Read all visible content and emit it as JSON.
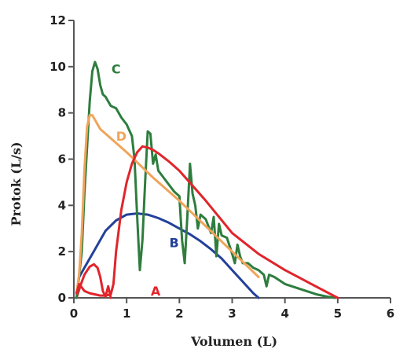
{
  "chart_data": {
    "type": "line",
    "title": "",
    "xlabel": "Volumen (L)",
    "ylabel": "Protok (L/s)",
    "xlim": [
      0,
      6
    ],
    "ylim": [
      0,
      12
    ],
    "x_ticks": [
      0,
      1,
      2,
      3,
      4,
      5,
      6
    ],
    "y_ticks": [
      0,
      2,
      4,
      6,
      8,
      10,
      12
    ],
    "grid": false,
    "legend": "none",
    "series": [
      {
        "name": "A",
        "color": "#e0252b",
        "label_at": [
          1.55,
          0.1
        ],
        "x": [
          0.05,
          0.12,
          0.2,
          0.3,
          0.38,
          0.45,
          0.5,
          0.55,
          0.6,
          0.65,
          0.7
        ],
        "y": [
          0.0,
          0.5,
          1.0,
          1.35,
          1.45,
          1.3,
          0.9,
          0.3,
          0.05,
          0.5,
          0.0
        ]
      },
      {
        "name": "B",
        "color": "#23409a",
        "label_at": [
          1.9,
          2.2
        ],
        "x": [
          0.05,
          0.1,
          0.2,
          0.4,
          0.6,
          0.8,
          1.0,
          1.2,
          1.4,
          1.6,
          1.8,
          2.0,
          2.2,
          2.4,
          2.6,
          2.8,
          3.0,
          3.2,
          3.4,
          3.5
        ],
        "y": [
          0.2,
          0.9,
          1.3,
          2.1,
          2.9,
          3.35,
          3.6,
          3.65,
          3.6,
          3.45,
          3.25,
          3.0,
          2.75,
          2.45,
          2.1,
          1.7,
          1.2,
          0.7,
          0.2,
          0.0
        ]
      },
      {
        "name": "C",
        "color": "#2e7d3e",
        "label_at": [
          0.8,
          9.7
        ],
        "x": [
          0.05,
          0.15,
          0.2,
          0.25,
          0.3,
          0.35,
          0.4,
          0.45,
          0.5,
          0.55,
          0.6,
          0.7,
          0.8,
          0.9,
          1.0,
          1.1,
          1.15,
          1.2,
          1.25,
          1.3,
          1.35,
          1.4,
          1.45,
          1.5,
          1.55,
          1.6,
          1.7,
          1.8,
          1.9,
          2.0,
          2.05,
          2.1,
          2.15,
          2.2,
          2.25,
          2.3,
          2.35,
          2.4,
          2.5,
          2.6,
          2.65,
          2.7,
          2.75,
          2.8,
          2.9,
          3.0,
          3.05,
          3.1,
          3.15,
          3.2,
          3.3,
          3.4,
          3.5,
          3.6,
          3.65,
          3.7,
          3.8,
          4.0,
          4.2,
          4.4,
          4.6,
          4.8,
          4.95
        ],
        "y": [
          0.0,
          2.0,
          4.5,
          6.5,
          8.5,
          9.8,
          10.2,
          9.9,
          9.2,
          8.8,
          8.7,
          8.3,
          8.2,
          7.8,
          7.5,
          7.0,
          6.0,
          3.5,
          1.2,
          2.5,
          5.0,
          7.2,
          7.1,
          5.8,
          6.2,
          5.5,
          5.2,
          4.9,
          4.6,
          4.4,
          2.5,
          1.5,
          3.5,
          5.8,
          4.5,
          4.0,
          3.0,
          3.6,
          3.4,
          2.8,
          3.5,
          1.8,
          3.2,
          2.7,
          2.6,
          1.9,
          1.5,
          2.3,
          1.8,
          1.5,
          1.5,
          1.3,
          1.2,
          1.0,
          0.5,
          1.0,
          0.9,
          0.6,
          0.45,
          0.3,
          0.15,
          0.05,
          0.0
        ]
      },
      {
        "name": "D",
        "color": "#f0a45a",
        "label_at": [
          0.9,
          6.8
        ],
        "x": [
          0.05,
          0.1,
          0.15,
          0.2,
          0.25,
          0.3,
          0.35,
          0.4,
          0.5,
          0.7,
          1.0,
          1.5,
          2.0,
          2.5,
          3.0,
          3.5
        ],
        "y": [
          0.2,
          1.0,
          2.8,
          5.5,
          7.4,
          7.9,
          7.9,
          7.7,
          7.3,
          6.9,
          6.3,
          5.2,
          4.2,
          3.1,
          2.0,
          0.9
        ]
      },
      {
        "name": "",
        "color": "#e0252b",
        "x": [
          0.05,
          0.1,
          0.2,
          0.3,
          0.4,
          0.5,
          0.6,
          0.7,
          0.75,
          0.8,
          0.9,
          1.0,
          1.1,
          1.2,
          1.3,
          1.4,
          1.5,
          1.6,
          1.8,
          2.0,
          2.5,
          3.0,
          3.5,
          4.0,
          4.5,
          5.0
        ],
        "y": [
          0.2,
          0.6,
          0.3,
          0.2,
          0.15,
          0.1,
          0.1,
          0.15,
          0.6,
          2.0,
          3.8,
          5.0,
          5.8,
          6.3,
          6.55,
          6.5,
          6.4,
          6.25,
          5.9,
          5.5,
          4.2,
          2.8,
          1.9,
          1.2,
          0.6,
          0.0
        ]
      }
    ]
  }
}
